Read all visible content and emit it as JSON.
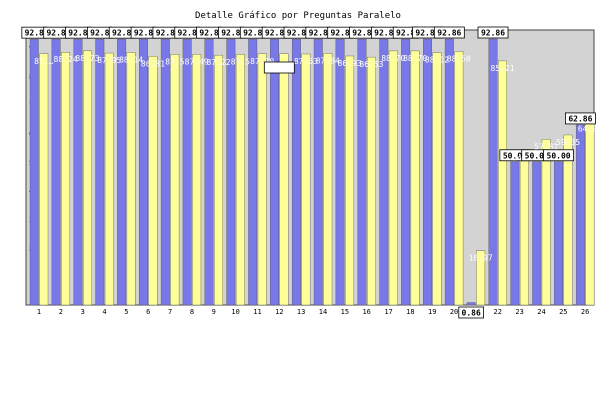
{
  "chart_data": {
    "type": "bar",
    "title": "Detalle Gráfico por Preguntas Paralelo",
    "categories": [
      "1",
      "2",
      "3",
      "4",
      "5",
      "6",
      "7",
      "8",
      "9",
      "10",
      "11",
      "12",
      "13",
      "14",
      "15",
      "16",
      "17",
      "18",
      "19",
      "20",
      "21",
      "22",
      "23",
      "24",
      "25",
      "26"
    ],
    "series": [
      {
        "color": "#7878e8",
        "values": [
          92.8,
          92.8,
          92.8,
          92.8,
          92.8,
          92.8,
          92.8,
          92.8,
          92.8,
          92.8,
          92.8,
          92.8,
          92.8,
          92.8,
          92.8,
          92.8,
          92.8,
          92.8,
          92.86,
          92.86,
          0.86,
          92.86,
          50.0,
          50.0,
          50.0,
          62.86
        ],
        "labels": [
          "92.8",
          "92.8",
          "92.8",
          "92.8",
          "92.8",
          "92.8",
          "92.8",
          "92.8",
          "92.8",
          "92.8",
          "92.8",
          "92.8",
          "92.8",
          "92.8",
          "92.8",
          "92.8",
          "92.8",
          "92.8",
          "92.86",
          "92.86",
          "0.86",
          "92.86",
          "50.00",
          "50.00",
          "50.00",
          "62.86"
        ]
      },
      {
        "color": "#ffff99",
        "values": [
          87.7,
          88.24,
          88.73,
          87.95,
          88.14,
          86.81,
          87.5,
          87.49,
          87.22,
          87.5,
          87.7,
          87.7,
          87.63,
          87.84,
          86.93,
          86.53,
          88.7,
          88.7,
          88.12,
          88.5,
          18.97,
          85.21,
          54.0,
          57.81,
          59.35,
          64.0
        ],
        "labels": [
          "87.…",
          "88.24",
          "88.73",
          "87.95",
          "88.14",
          "86.81",
          "87.5",
          "87.49",
          "87.22",
          "87.5",
          "87.70",
          "",
          "87.63",
          "87.84",
          "86.93",
          "86.53",
          "88.70",
          "88.70",
          "88.12",
          "88.50",
          "18.97",
          "85.21",
          "54.00",
          "57.81",
          "59.35",
          "64.00"
        ]
      }
    ],
    "yticks": [
      10,
      20,
      30,
      40,
      50,
      60,
      70,
      80,
      90
    ],
    "ylim": [
      0,
      96
    ],
    "grid": false,
    "legend": "none"
  }
}
